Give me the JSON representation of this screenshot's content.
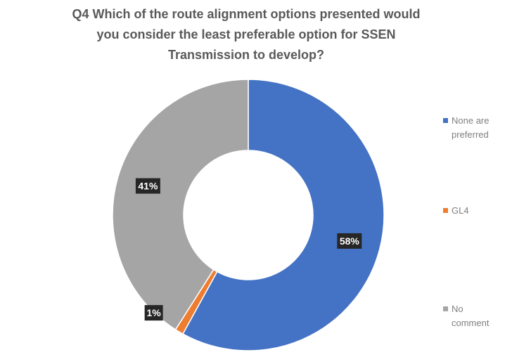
{
  "chart_data": {
    "type": "pie",
    "title_lines": [
      "Q4 Which of the route alignment options presented would",
      "you consider the least preferable option for SSEN",
      "Transmission to develop?"
    ],
    "series": [
      {
        "name": "None are preferred",
        "value": 58,
        "label": "58%",
        "color": "#4472C4"
      },
      {
        "name": "GL4",
        "value": 1,
        "label": "1%",
        "color": "#ED7D31"
      },
      {
        "name": "No comment",
        "value": 41,
        "label": "41%",
        "color": "#A5A5A5"
      }
    ],
    "legend": [
      {
        "text": "None are\npreferred",
        "color": "#4472C4"
      },
      {
        "text": "GL4",
        "color": "#ED7D31"
      },
      {
        "text": "No\ncomment",
        "color": "#A5A5A5"
      }
    ],
    "legend_position": "right",
    "donut": true
  }
}
